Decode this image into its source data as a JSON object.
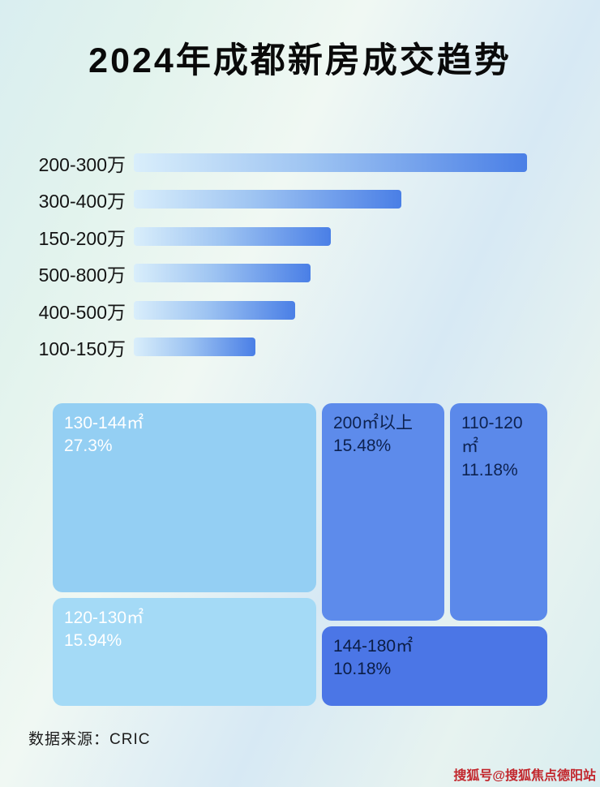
{
  "page": {
    "title": "2024年成都新房成交趋势",
    "source": "数据来源：CRIC",
    "watermark": "搜狐号@搜狐焦点德阳站"
  },
  "chart_data": [
    {
      "type": "bar",
      "orientation": "horizontal",
      "title": "2024年成都新房成交趋势",
      "categories": [
        "200-300万",
        "300-400万",
        "150-200万",
        "500-800万",
        "400-500万",
        "100-150万"
      ],
      "values": [
        100,
        68,
        50,
        45,
        41,
        31
      ],
      "note": "no numeric labels or axis shown; values are relative bar lengths estimated from pixels (max=100)",
      "bar_gradient": [
        "#d9eefb",
        "#4a7fe6"
      ],
      "legend": "none",
      "grid": false
    },
    {
      "type": "treemap",
      "title": "",
      "items": [
        {
          "label": "130-144㎡",
          "value": "27.3%",
          "color": "#94cff3",
          "text_color": "#ffffff"
        },
        {
          "label": "200㎡以上",
          "value": "15.48%",
          "color": "#5d8beb",
          "text_color": "#0d2250"
        },
        {
          "label": "110-120㎡",
          "value": "11.18%",
          "color": "#5b89ea",
          "text_color": "#0d2250"
        },
        {
          "label": "120-130㎡",
          "value": "15.94%",
          "color": "#a4daf6",
          "text_color": "#ffffff"
        },
        {
          "label": "144-180㎡",
          "value": "10.18%",
          "color": "#4b76e6",
          "text_color": "#0b1d45"
        }
      ]
    }
  ]
}
